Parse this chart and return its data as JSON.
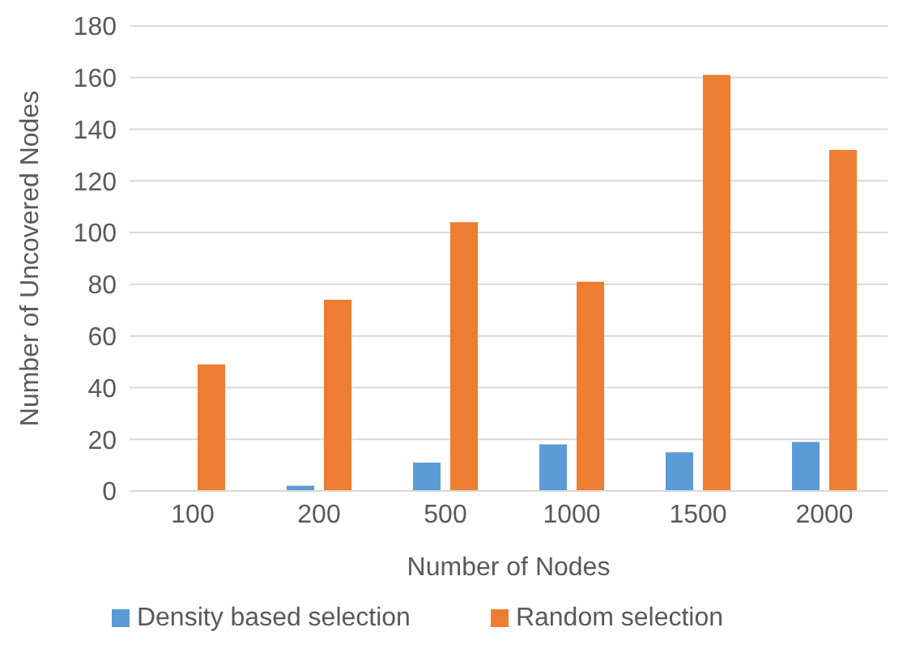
{
  "chart_data": {
    "type": "bar",
    "xlabel": "Number of Nodes",
    "ylabel": "Number of Uncovered Nodes",
    "categories": [
      "100",
      "200",
      "500",
      "1000",
      "1500",
      "2000"
    ],
    "series": [
      {
        "name": "Density based selection",
        "color": "#5b9bd5",
        "values": [
          0,
          2,
          11,
          18,
          15,
          19
        ]
      },
      {
        "name": "Random selection",
        "color": "#ed7d31",
        "values": [
          49,
          74,
          104,
          81,
          161,
          132
        ]
      }
    ],
    "ylim": [
      0,
      180
    ],
    "yticks": [
      0,
      20,
      40,
      60,
      80,
      100,
      120,
      140,
      160,
      180
    ],
    "grid": "y",
    "legend": "bottom"
  }
}
